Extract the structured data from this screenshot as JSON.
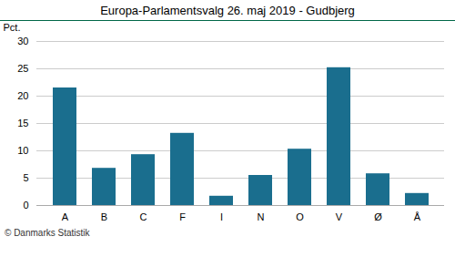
{
  "chart_data": {
    "type": "bar",
    "title": "Europa-Parlamentsvalg 26. maj 2019 - Gudbjerg",
    "ylabel": "Pct.",
    "caption": "© Danmarks Statistik",
    "categories": [
      "A",
      "B",
      "C",
      "F",
      "I",
      "N",
      "O",
      "V",
      "Ø",
      "Å"
    ],
    "values": [
      21.5,
      6.8,
      9.3,
      13.2,
      1.7,
      5.5,
      10.3,
      25.2,
      5.8,
      2.2
    ],
    "color": "#1a6e8e",
    "ylim": [
      0,
      30
    ],
    "yticks": [
      0,
      5,
      10,
      15,
      20,
      25,
      30
    ],
    "grid": true
  }
}
